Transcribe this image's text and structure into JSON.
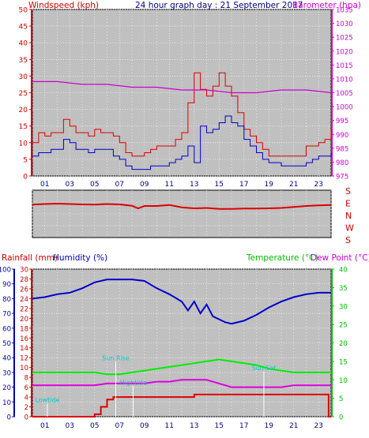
{
  "header": {
    "left_label": "Windspeed (kph)",
    "title": "24 hour graph day : 21 September 2017",
    "right_label": "Barometer (hpa)"
  },
  "colors": {
    "wind_gust": "#dd0000",
    "wind_avg": "#0000cc",
    "barometer": "#cc00cc",
    "direction": "#dd0000",
    "humidity": "#0000cc",
    "temperature": "#00ee00",
    "dewpoint": "#dd00dd",
    "rainfall": "#dd0000",
    "event": "#00cccc",
    "plot_bg": "#c0c0c0",
    "grid": "#ffffff"
  },
  "compass": [
    "S",
    "E",
    "N",
    "W",
    "S"
  ],
  "panel3_labels": {
    "rain": "Rainfall (mm)",
    "humidity": "Humidity (%)",
    "temp": "Temperature (°C)",
    "dew": "Dew Point (°C)"
  },
  "events": [
    {
      "label": "Lowtide",
      "hour": 1.2,
      "y_rain": 3
    },
    {
      "label": "Sun Rise",
      "hour": 6.7,
      "y_rain": 11.5
    },
    {
      "label": "Hightide",
      "hour": 8.1,
      "y_rain": 6.5
    },
    {
      "label": "Sun Set",
      "hour": 18.6,
      "y_rain": 9.5
    }
  ],
  "chart_data": [
    {
      "type": "line",
      "title": "24 hour graph day : 21 September 2017",
      "xlabel": "",
      "ylabel": "Windspeed (kph)",
      "y2label": "Barometer (hpa)",
      "x_ticks": [
        "01",
        "03",
        "05",
        "07",
        "09",
        "11",
        "13",
        "15",
        "17",
        "19",
        "21",
        "23"
      ],
      "xlim": [
        0,
        24
      ],
      "ylim": [
        0,
        50
      ],
      "y_ticks": [
        0,
        5,
        10,
        15,
        20,
        25,
        30,
        35,
        40,
        45,
        50
      ],
      "y2lim": [
        975,
        1035
      ],
      "y2_ticks": [
        975,
        980,
        985,
        990,
        995,
        1000,
        1005,
        1010,
        1015,
        1020,
        1025,
        1030,
        1035
      ],
      "series": [
        {
          "key": "wind_gust",
          "axis": "left",
          "x": [
            0,
            0.5,
            1,
            1.5,
            2,
            2.5,
            3,
            3.5,
            4,
            4.5,
            5,
            5.5,
            6,
            6.5,
            7,
            7.5,
            8,
            8.5,
            9,
            9.5,
            10,
            10.5,
            11,
            11.5,
            12,
            12.5,
            13,
            13.5,
            14,
            14.5,
            15,
            15.5,
            16,
            16.5,
            17,
            17.5,
            18,
            18.5,
            19,
            19.5,
            20,
            20.5,
            21,
            21.5,
            22,
            22.5,
            23,
            23.5,
            24
          ],
          "values": [
            10,
            13,
            12,
            13,
            13,
            17,
            15,
            13,
            13,
            12,
            14,
            13,
            13,
            12,
            10,
            7,
            6,
            6,
            7,
            8,
            9,
            9,
            9,
            11,
            13,
            22,
            31,
            26,
            24,
            27,
            31,
            27,
            24,
            19,
            14,
            12,
            10,
            8,
            6,
            6,
            6,
            6,
            6,
            6,
            9,
            9,
            10,
            11,
            14
          ]
        },
        {
          "key": "wind_avg",
          "axis": "left",
          "x": [
            0,
            0.5,
            1,
            1.5,
            2,
            2.5,
            3,
            3.5,
            4,
            4.5,
            5,
            5.5,
            6,
            6.5,
            7,
            7.5,
            8,
            8.5,
            9,
            9.5,
            10,
            10.5,
            11,
            11.5,
            12,
            12.5,
            13,
            13.5,
            14,
            14.5,
            15,
            15.5,
            16,
            16.5,
            17,
            17.5,
            18,
            18.5,
            19,
            19.5,
            20,
            20.5,
            21,
            21.5,
            22,
            22.5,
            23,
            23.5,
            24
          ],
          "values": [
            6,
            7,
            7,
            8,
            8,
            11,
            10,
            8,
            8,
            7,
            8,
            8,
            8,
            6,
            5,
            3,
            2,
            2,
            2,
            3,
            3,
            3,
            4,
            5,
            6,
            9,
            4,
            15,
            13,
            14,
            16,
            18,
            16,
            15,
            11,
            9,
            7,
            5,
            4,
            4,
            3,
            3,
            3,
            3,
            4,
            5,
            6,
            6,
            7
          ]
        },
        {
          "key": "barometer",
          "axis": "right",
          "x": [
            0,
            2,
            4,
            6,
            8,
            10,
            12,
            14,
            16,
            18,
            20,
            22,
            24
          ],
          "values": [
            1009,
            1009,
            1008,
            1008,
            1007,
            1007,
            1006,
            1006,
            1005,
            1005,
            1006,
            1006,
            1005
          ]
        }
      ]
    },
    {
      "type": "line",
      "title": "",
      "xlabel": "",
      "ylabel": "",
      "xlim": [
        0,
        24
      ],
      "ylim": [
        0,
        360
      ],
      "y_ticks_labels": [
        "S",
        "E",
        "N",
        "W",
        "S"
      ],
      "series": [
        {
          "key": "direction",
          "x": [
            0,
            1,
            2,
            3,
            4,
            5,
            6,
            7,
            8,
            8.5,
            9,
            10,
            11,
            12,
            13,
            14,
            15,
            16,
            17,
            18,
            19,
            20,
            21,
            22,
            23,
            24
          ],
          "values": [
            250,
            255,
            258,
            255,
            252,
            250,
            255,
            252,
            242,
            222,
            240,
            240,
            248,
            230,
            222,
            225,
            218,
            218,
            220,
            220,
            222,
            225,
            232,
            240,
            245,
            248
          ]
        }
      ]
    },
    {
      "type": "line",
      "title": "",
      "xlabel": "",
      "ylabel": "Rainfall (mm)",
      "y2label": "Temperature (°C)",
      "xlim": [
        0,
        24
      ],
      "humidity_ticks": [
        0,
        10,
        20,
        30,
        40,
        50,
        60,
        70,
        80,
        90,
        100
      ],
      "rain_ticks": [
        0,
        2,
        4,
        6,
        8,
        10,
        12,
        14,
        16,
        18,
        20,
        22,
        24,
        26,
        28,
        30
      ],
      "temp_ticks": [
        0,
        5,
        10,
        15,
        20,
        25,
        30,
        35,
        40
      ],
      "series": [
        {
          "key": "humidity",
          "axis": "humidity",
          "x": [
            0,
            1,
            2,
            3,
            4,
            5,
            6,
            7,
            8,
            9,
            10,
            11,
            12,
            12.5,
            13,
            13.5,
            14,
            14.5,
            15,
            15.5,
            16,
            17,
            18,
            19,
            20,
            21,
            22,
            23,
            24
          ],
          "values": [
            80,
            81,
            83,
            84,
            87,
            91,
            93,
            93,
            93,
            92,
            87,
            83,
            78,
            72,
            78,
            70,
            76,
            68,
            66,
            64,
            63,
            65,
            69,
            74,
            78,
            81,
            83,
            84,
            84
          ]
        },
        {
          "key": "temperature",
          "axis": "temp",
          "x": [
            0,
            1,
            2,
            3,
            4,
            5,
            6,
            7,
            8,
            9,
            10,
            11,
            12,
            13,
            14,
            15,
            16,
            17,
            18,
            19,
            20,
            21,
            22,
            23,
            24
          ],
          "values": [
            12,
            12,
            12,
            12,
            12,
            12,
            11.5,
            11.5,
            12,
            12.5,
            13,
            13.5,
            14,
            14.5,
            15,
            15.5,
            15,
            14.5,
            14,
            13,
            12.5,
            12,
            12,
            12,
            12
          ]
        },
        {
          "key": "dewpoint",
          "axis": "temp",
          "x": [
            0,
            1,
            2,
            3,
            4,
            5,
            6,
            7,
            8,
            9,
            10,
            11,
            12,
            13,
            14,
            15,
            16,
            17,
            18,
            19,
            20,
            21,
            22,
            23,
            24
          ],
          "values": [
            8.5,
            8.5,
            8.5,
            8.5,
            8.5,
            8.5,
            9,
            9,
            9,
            9,
            9.5,
            9.5,
            10,
            10,
            10,
            9,
            8,
            8,
            8,
            8,
            8,
            8.5,
            8.5,
            8.5,
            8.5
          ]
        },
        {
          "key": "rainfall",
          "axis": "rain",
          "x": [
            0,
            4.5,
            5,
            5.5,
            6,
            6.5,
            7,
            8,
            9,
            10,
            11,
            12,
            13,
            14,
            15,
            16,
            17,
            18,
            19,
            20,
            21,
            22,
            23,
            23.8,
            23.8,
            24
          ],
          "values": [
            0,
            0,
            0.5,
            2,
            3.5,
            4,
            4,
            4,
            4,
            4,
            4,
            4,
            4.5,
            4.5,
            4.5,
            4.5,
            4.5,
            4.5,
            4.5,
            4.5,
            4.5,
            4.5,
            4.5,
            4.5,
            0,
            0
          ]
        }
      ]
    }
  ]
}
